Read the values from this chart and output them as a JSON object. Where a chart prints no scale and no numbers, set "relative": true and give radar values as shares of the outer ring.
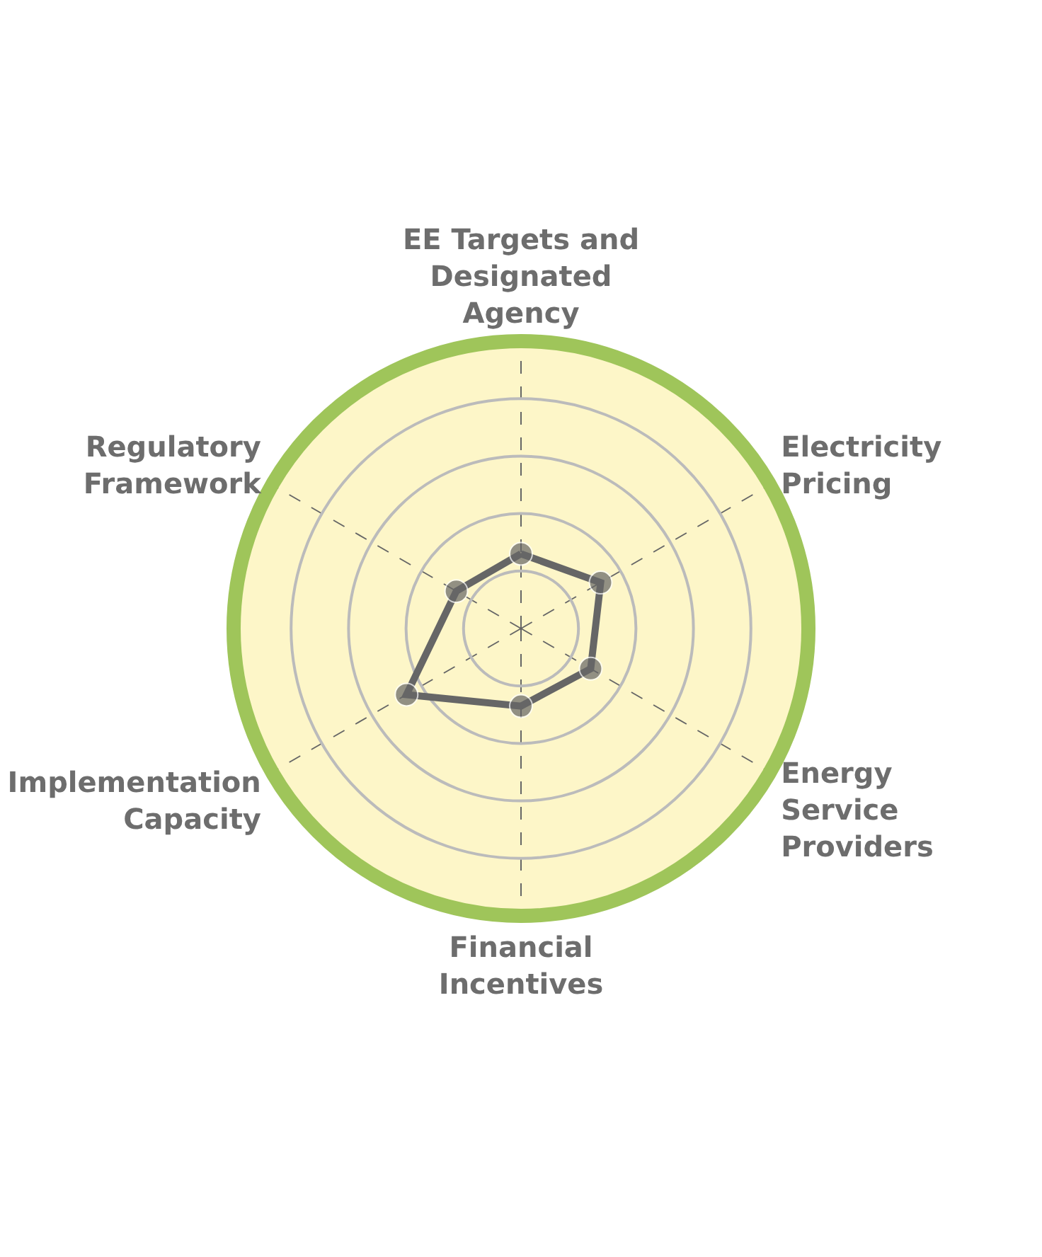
{
  "chart_data": {
    "type": "radar",
    "relative": true,
    "grid": true,
    "marker": "circle",
    "line_style": "solid",
    "categories": [
      "EE Targets and\nDesignated\nAgency",
      "Electricity\nPricing",
      "Energy\nService\nProviders",
      "Financial\nIncentives",
      "Implementation\nCapacity",
      "Regulatory\nFramework"
    ],
    "series": [
      {
        "color": "#666666",
        "values": [
          0.26,
          0.32,
          0.28,
          0.27,
          0.46,
          0.26
        ]
      }
    ]
  }
}
